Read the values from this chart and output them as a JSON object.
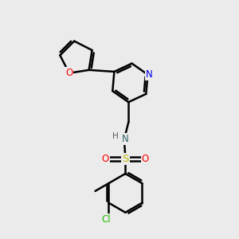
{
  "bg_color": "#ebebeb",
  "bond_color": "#000000",
  "bond_width": 1.8,
  "atom_colors": {
    "O": "#ff0000",
    "N_pyridine": "#0000ee",
    "N_amine": "#336666",
    "S": "#bbbb00",
    "Cl": "#22bb00",
    "H": "#555555",
    "C": "#000000"
  },
  "font_size": 8.5,
  "fig_size": [
    3.0,
    3.0
  ],
  "dpi": 100
}
